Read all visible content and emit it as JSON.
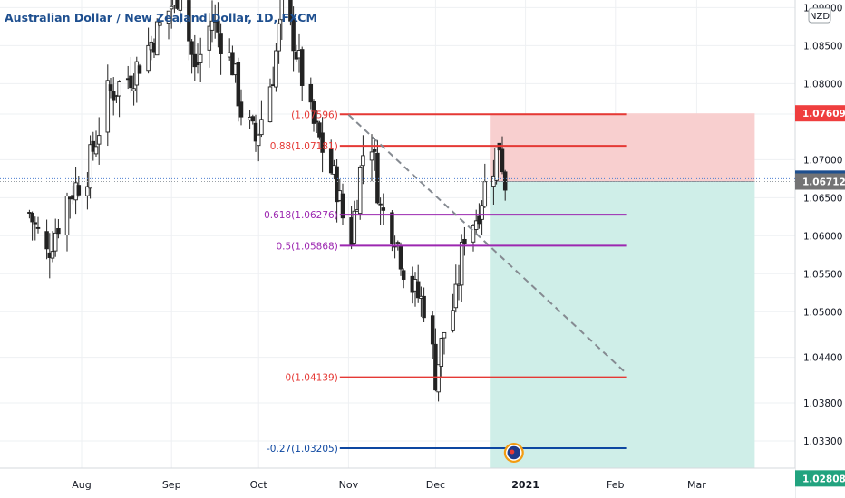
{
  "chart_title": "Australian Dollar / New Zealand Dollar, 1D, FXCM",
  "currency_badge": "NZD",
  "colors": {
    "up": "#26a69a",
    "down": "#ef5350",
    "candle": "#222222",
    "fib_red": "#e53935",
    "fib_purple": "#9c27b0",
    "fib_blue": "#0d47a1",
    "stop_zone": "#f8cfcf",
    "target_zone": "#cfeee8",
    "price_blue": "#1e4f8f",
    "price_grey": "#737375",
    "target_label": "#22a37f",
    "stop_label": "#ef3e3e"
  },
  "chart_data": {
    "type": "candlestick",
    "title": "Australian Dollar / New Zealand Dollar, 1D, FXCM",
    "ylim": [
      1.0255,
      1.091
    ],
    "y_ticks": [
      1.09,
      1.085,
      1.08,
      1.076,
      1.07,
      1.065,
      1.06,
      1.055,
      1.05,
      1.044,
      1.038,
      1.033
    ],
    "y_tick_labels": [
      "1.09000",
      "1.08500",
      "1.08000",
      "1.07600",
      "1.07000",
      "1.06500",
      "1.06000",
      "1.05500",
      "1.05000",
      "1.04400",
      "1.03800",
      "1.03300"
    ],
    "x_labels": [
      {
        "label": "Aug",
        "date": "2020-08-01"
      },
      {
        "label": "Sep",
        "date": "2020-09-01"
      },
      {
        "label": "Oct",
        "date": "2020-10-01"
      },
      {
        "label": "Nov",
        "date": "2020-11-01"
      },
      {
        "label": "Dec",
        "date": "2020-12-01"
      },
      {
        "label": "2021",
        "date": "2021-01-01"
      },
      {
        "label": "Feb",
        "date": "2021-02-01"
      },
      {
        "label": "Mar",
        "date": "2021-03-01"
      }
    ],
    "price_path": [
      {
        "date": "2020-07-14",
        "price": 1.063
      },
      {
        "date": "2020-07-20",
        "price": 1.0575
      },
      {
        "date": "2020-07-27",
        "price": 1.065
      },
      {
        "date": "2020-08-03",
        "price": 1.0685
      },
      {
        "date": "2020-08-10",
        "price": 1.0785
      },
      {
        "date": "2020-08-19",
        "price": 1.0815
      },
      {
        "date": "2020-08-28",
        "price": 1.0875
      },
      {
        "date": "2020-09-04",
        "price": 1.0925
      },
      {
        "date": "2020-09-09",
        "price": 1.0815
      },
      {
        "date": "2020-09-15",
        "price": 1.0885
      },
      {
        "date": "2020-09-22",
        "price": 1.0825
      },
      {
        "date": "2020-09-25",
        "price": 1.0765
      },
      {
        "date": "2020-09-30",
        "price": 1.0725
      },
      {
        "date": "2020-10-06",
        "price": 1.0815
      },
      {
        "date": "2020-10-09",
        "price": 1.0895
      },
      {
        "date": "2020-10-13",
        "price": 1.086
      },
      {
        "date": "2020-10-19",
        "price": 1.0755
      },
      {
        "date": "2020-10-23",
        "price": 1.0715
      },
      {
        "date": "2020-10-28",
        "price": 1.0665
      },
      {
        "date": "2020-10-30",
        "price": 1.0625
      },
      {
        "date": "2020-11-02",
        "price": 1.06
      },
      {
        "date": "2020-11-05",
        "price": 1.0685
      },
      {
        "date": "2020-11-08",
        "price": 1.0755
      },
      {
        "date": "2020-11-12",
        "price": 1.0635
      },
      {
        "date": "2020-11-17",
        "price": 1.0605
      },
      {
        "date": "2020-11-20",
        "price": 1.056
      },
      {
        "date": "2020-11-24",
        "price": 1.0525
      },
      {
        "date": "2020-11-28",
        "price": 1.0505
      },
      {
        "date": "2020-12-01",
        "price": 1.0415
      },
      {
        "date": "2020-12-04",
        "price": 1.0475
      },
      {
        "date": "2020-12-08",
        "price": 1.0515
      },
      {
        "date": "2020-12-11",
        "price": 1.0605
      },
      {
        "date": "2020-12-15",
        "price": 1.0625
      },
      {
        "date": "2020-12-18",
        "price": 1.0665
      },
      {
        "date": "2020-12-21",
        "price": 1.0695
      },
      {
        "date": "2020-12-23",
        "price": 1.0722
      },
      {
        "date": "2020-12-25",
        "price": 1.0671
      }
    ],
    "fib_levels": [
      {
        "label": "(1.07596)",
        "price": 1.07596,
        "color": "red",
        "start": "2020-10-29",
        "end": "2021-02-05"
      },
      {
        "label": "0.88(1.07181)",
        "price": 1.07181,
        "color": "red",
        "start": "2020-10-29",
        "end": "2021-02-05"
      },
      {
        "label": "0.618(1.06276)",
        "price": 1.06276,
        "color": "purple",
        "start": "2020-10-29",
        "end": "2021-02-05"
      },
      {
        "label": "0.5(1.05868)",
        "price": 1.05868,
        "color": "purple",
        "start": "2020-10-29",
        "end": "2021-02-05"
      },
      {
        "label": "0(1.04139)",
        "price": 1.04139,
        "color": "red",
        "start": "2020-10-29",
        "end": "2021-02-05"
      },
      {
        "label": "-0.27(1.03205)",
        "price": 1.03205,
        "color": "blue",
        "start": "2020-10-29",
        "end": "2021-02-05"
      }
    ],
    "trend_line": {
      "start": {
        "date": "2020-11-01",
        "price": 1.0759
      },
      "end": {
        "date": "2021-02-05",
        "price": 1.0418
      }
    },
    "short_position": {
      "entry": 1.06712,
      "stop": 1.07609,
      "target": 1.02808,
      "start": "2020-12-20",
      "end": "2021-03-21"
    },
    "price_labels": [
      {
        "text": "1.07609",
        "price": 1.07609,
        "style": "stop"
      },
      {
        "text": "1.06712",
        "price": 1.0675,
        "style": "blue"
      },
      {
        "text": "1.06712",
        "price": 1.06712,
        "style": "grey"
      },
      {
        "text": "1.02808",
        "price": 1.02808,
        "style": "target"
      }
    ],
    "grid": true
  }
}
